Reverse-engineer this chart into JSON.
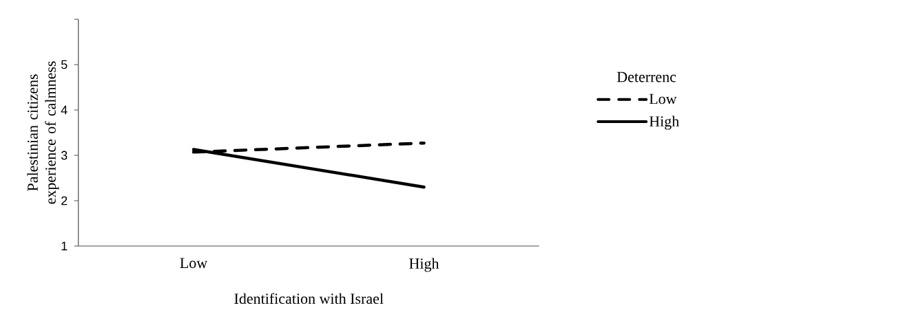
{
  "chart_data": {
    "type": "line",
    "xlabel": "Identification with Israel",
    "ylabel": "Palestinian citizens experience of calmness",
    "legend_title": "Deterrenc",
    "legend": "right",
    "categories": [
      "Low",
      "High"
    ],
    "series": [
      {
        "name": "Low",
        "color": "#000000",
        "line_style": "dashed",
        "values": [
          3.07,
          3.27
        ]
      },
      {
        "name": "High",
        "color": "#000000",
        "line_style": "solid",
        "values": [
          3.13,
          2.3
        ]
      }
    ],
    "ylim": [
      1,
      6
    ],
    "yticks": [
      1,
      2,
      3,
      4,
      5,
      {
        "value": 6,
        "label": null
      }
    ],
    "grid": false,
    "marker": "none"
  }
}
